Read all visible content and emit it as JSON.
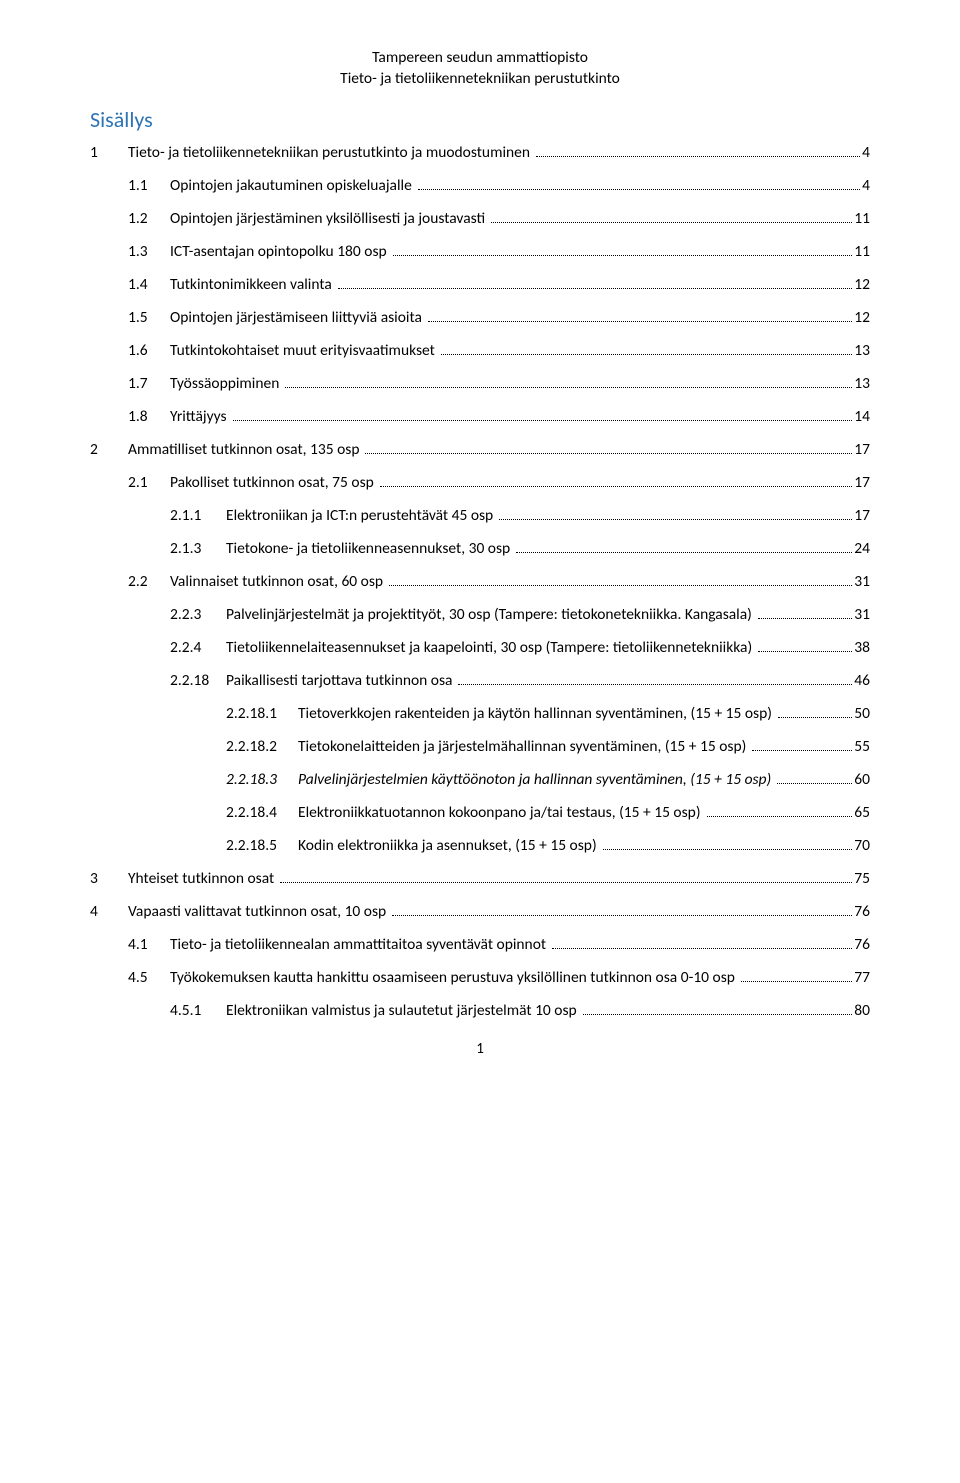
{
  "colors": {
    "text": "#000000",
    "heading": "#2e74b5",
    "background": "#ffffff",
    "dots": "#000000"
  },
  "typography": {
    "body_family": "Calibri",
    "body_size_pt": 11,
    "heading_size_pt": 16,
    "heading_weight": 400
  },
  "header": {
    "line1": "Tampereen seudun ammattiopisto",
    "line2": "Tieto- ja tietoliikennetekniikan perustutkinto"
  },
  "toc": {
    "title": "Sisällys",
    "entries": [
      {
        "level": 1,
        "num": "1",
        "label": "Tieto- ja tietoliikennetekniikan perustutkinto ja muodostuminen",
        "page": "4",
        "italic": false
      },
      {
        "level": 2,
        "num": "1.1",
        "label": "Opintojen jakautuminen opiskeluajalle",
        "page": "4",
        "italic": false
      },
      {
        "level": 2,
        "num": "1.2",
        "label": "Opintojen järjestäminen yksilöllisesti ja joustavasti",
        "page": "11",
        "italic": false
      },
      {
        "level": 2,
        "num": "1.3",
        "label": "ICT-asentajan opintopolku 180 osp",
        "page": "11",
        "italic": false
      },
      {
        "level": 2,
        "num": "1.4",
        "label": "Tutkintonimikkeen valinta",
        "page": "12",
        "italic": false
      },
      {
        "level": 2,
        "num": "1.5",
        "label": "Opintojen järjestämiseen liittyviä asioita",
        "page": "12",
        "italic": false
      },
      {
        "level": 2,
        "num": "1.6",
        "label": "Tutkintokohtaiset muut erityisvaatimukset",
        "page": "13",
        "italic": false
      },
      {
        "level": 2,
        "num": "1.7",
        "label": "Työssäoppiminen",
        "page": "13",
        "italic": false
      },
      {
        "level": 2,
        "num": "1.8",
        "label": "Yrittäjyys",
        "page": "14",
        "italic": false
      },
      {
        "level": 1,
        "num": "2",
        "label": "Ammatilliset tutkinnon osat, 135 osp",
        "page": "17",
        "italic": false
      },
      {
        "level": 2,
        "num": "2.1",
        "label": "Pakolliset tutkinnon osat, 75 osp",
        "page": "17",
        "italic": false
      },
      {
        "level": 3,
        "num": "2.1.1",
        "label": "Elektroniikan ja ICT:n perustehtävät 45 osp",
        "page": "17",
        "italic": false
      },
      {
        "level": 3,
        "num": "2.1.3",
        "label": "Tietokone- ja tietoliikenneasennukset, 30 osp",
        "page": "24",
        "italic": false
      },
      {
        "level": 2,
        "num": "2.2",
        "label": "Valinnaiset tutkinnon osat, 60 osp",
        "page": "31",
        "italic": false
      },
      {
        "level": 3,
        "num": "2.2.3",
        "label": "Palvelinjärjestelmät ja projektityöt, 30 osp (Tampere: tietokonetekniikka. Kangasala)",
        "page": "31",
        "italic": false
      },
      {
        "level": 3,
        "num": "2.2.4",
        "label": "Tietoliikennelaiteasennukset ja kaapelointi, 30 osp (Tampere: tietoliikennetekniikka)",
        "page": "38",
        "italic": false
      },
      {
        "level": 3,
        "num": "2.2.18",
        "label": "Paikallisesti tarjottava tutkinnon osa",
        "page": "46",
        "italic": false
      },
      {
        "level": 4,
        "num": "2.2.18.1",
        "label": "Tietoverkkojen rakenteiden ja käytön hallinnan syventäminen, (15 + 15 osp)",
        "page": "50",
        "italic": false
      },
      {
        "level": 4,
        "num": "2.2.18.2",
        "label": "Tietokonelaitteiden ja järjestelmähallinnan syventäminen, (15 + 15 osp)",
        "page": "55",
        "italic": false
      },
      {
        "level": 4,
        "num": "2.2.18.3",
        "label": "Palvelinjärjestelmien käyttöönoton ja hallinnan syventäminen, (15 + 15 osp)",
        "page": "60",
        "italic": true
      },
      {
        "level": 4,
        "num": "2.2.18.4",
        "label": "Elektroniikkatuotannon kokoonpano ja/tai testaus, (15 + 15 osp)",
        "page": "65",
        "italic": false
      },
      {
        "level": 4,
        "num": "2.2.18.5",
        "label": "Kodin elektroniikka ja asennukset, (15 + 15 osp)",
        "page": "70",
        "italic": false
      },
      {
        "level": 1,
        "num": "3",
        "label": "Yhteiset tutkinnon osat",
        "page": "75",
        "italic": false
      },
      {
        "level": 1,
        "num": "4",
        "label": "Vapaasti valittavat tutkinnon osat, 10 osp",
        "page": "76",
        "italic": false
      },
      {
        "level": 2,
        "num": "4.1",
        "label": "Tieto- ja tietoliikennealan ammattitaitoa syventävät opinnot",
        "page": "76",
        "italic": false
      },
      {
        "level": 2,
        "num": "4.5",
        "label": "Työkokemuksen kautta hankittu osaamiseen perustuva yksilöllinen tutkinnon osa 0-10 osp",
        "page": "77",
        "italic": false
      },
      {
        "level": 3,
        "num": "4.5.1",
        "label": "Elektroniikan valmistus ja sulautetut järjestelmät 10 osp",
        "page": "80",
        "italic": false
      }
    ]
  },
  "footer": {
    "page_number": "1"
  }
}
